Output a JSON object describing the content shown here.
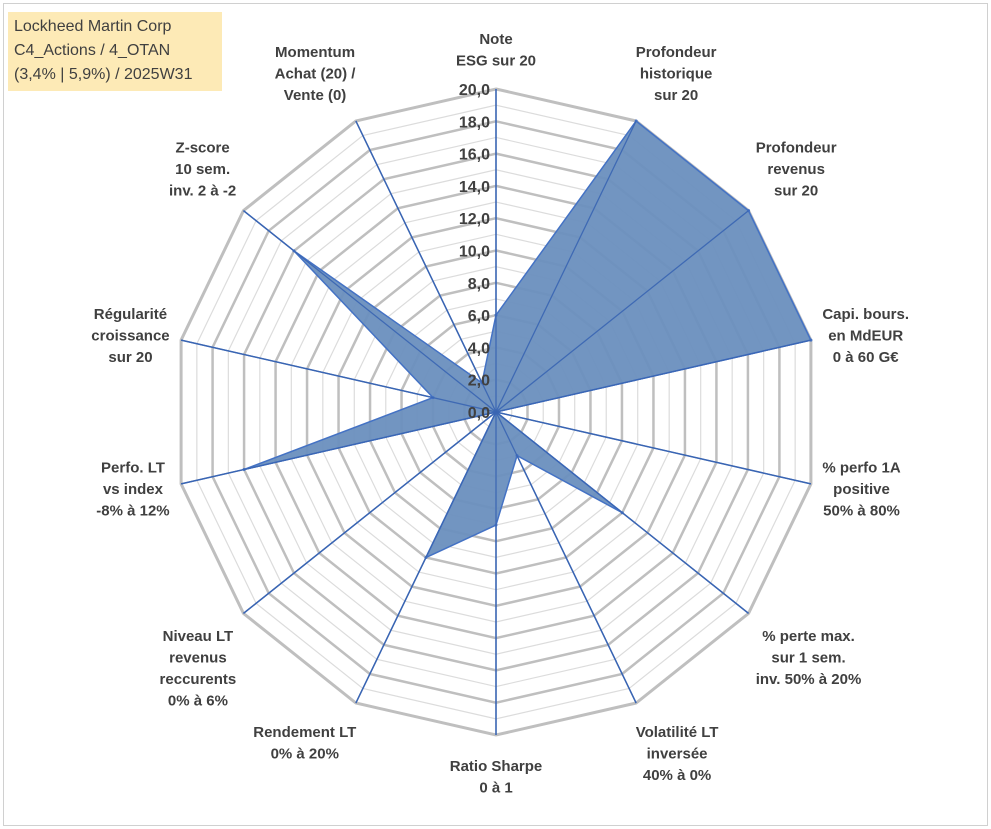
{
  "info_box": {
    "line1": "Lockheed Martin Corp",
    "line2": "C4_Actions / 4_OTAN",
    "line3": "(3,4% | 5,9%) / 2025W31"
  },
  "colors": {
    "fill": "#6a8fbe",
    "stroke": "#4472c4",
    "spoke": "#3a65b3",
    "grid_major": "#bfbfbf",
    "grid_minor": "#dcdcdc",
    "info_bg": "#fdeab6"
  },
  "chart_data": {
    "type": "radar",
    "title": "",
    "rlim": [
      0,
      20
    ],
    "tick_step": 2,
    "grid": true,
    "legend": "none",
    "ticks": [
      "0,0",
      "2,0",
      "4,0",
      "6,0",
      "8,0",
      "10,0",
      "12,0",
      "14,0",
      "16,0",
      "18,0",
      "20,0"
    ],
    "categories": [
      [
        "Note",
        "ESG sur 20"
      ],
      [
        "Profondeur",
        "historique",
        "sur 20"
      ],
      [
        "Profondeur",
        "revenus",
        "sur 20"
      ],
      [
        "Capi. bours.",
        "en MdEUR",
        "0 à 60 G€"
      ],
      [
        "% perfo 1A",
        "positive",
        "50% à 80%"
      ],
      [
        "% perte max.",
        "sur 1 sem.",
        "inv. 50% à 20%"
      ],
      [
        "Volatilité LT",
        "inversée",
        "40% à 0%"
      ],
      [
        "Ratio Sharpe",
        "0 à 1"
      ],
      [
        "Rendement LT",
        "0% à 20%"
      ],
      [
        "Niveau LT",
        "revenus",
        "reccurents",
        "0% à 6%"
      ],
      [
        "Perfo. LT",
        "vs index",
        "-8% à 12%"
      ],
      [
        "Régularité",
        "croissance",
        "sur 20"
      ],
      [
        "Z-score",
        "10 sem.",
        "inv. 2 à -2"
      ],
      [
        "Momentum",
        "Achat (20) /",
        "Vente (0)"
      ]
    ],
    "series": [
      {
        "values": [
          6.0,
          20.0,
          20.0,
          20.0,
          0.0,
          10.0,
          3.0,
          7.0,
          10.0,
          0.0,
          16.0,
          4.0,
          16.0,
          2.0
        ]
      }
    ]
  }
}
